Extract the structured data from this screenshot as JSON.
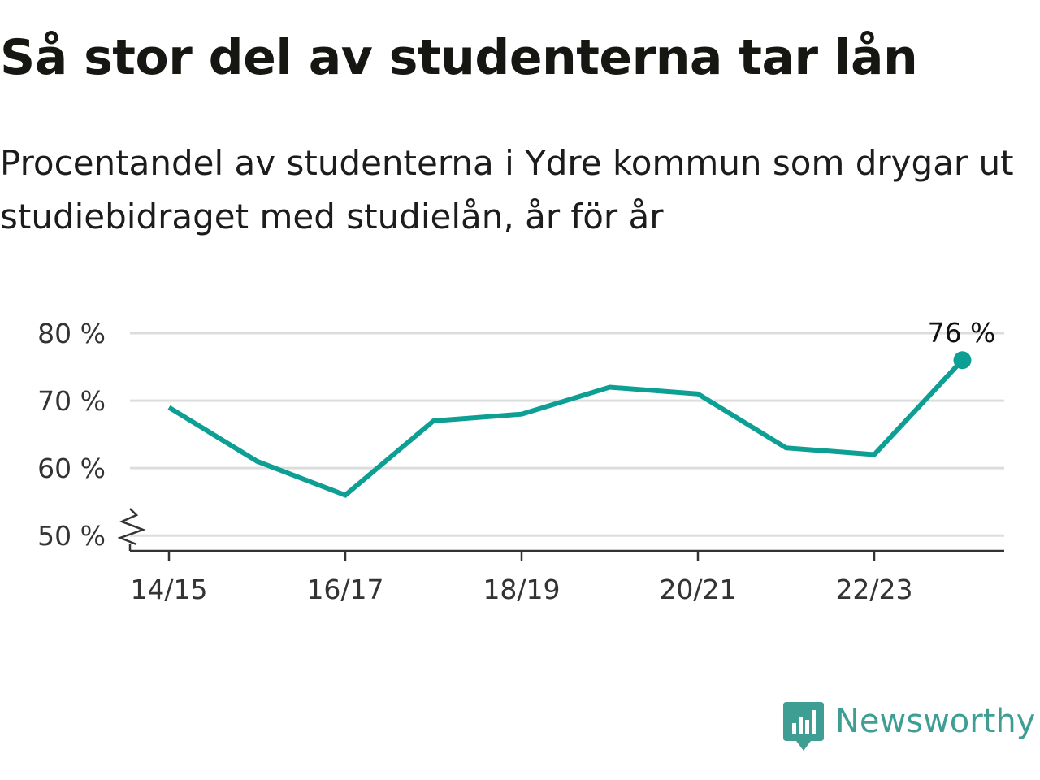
{
  "title": "Så stor del av studenterna tar lån",
  "subtitle": "Procentandel av studenterna i Ydre kommun som drygar ut studiebidraget med studielån, år för år",
  "brand": {
    "name": "Newsworthy",
    "color": "#3f9e93",
    "icon": "newsworthy-logo-icon"
  },
  "chart_data": {
    "type": "line",
    "x": [
      "14/15",
      "15/16",
      "16/17",
      "17/18",
      "18/19",
      "19/20",
      "20/21",
      "21/22",
      "22/23",
      "23/24"
    ],
    "series": [
      {
        "values": [
          69,
          61,
          56,
          67,
          68,
          72,
          71,
          63,
          62,
          76
        ],
        "color": "#0e9f94"
      }
    ],
    "x_tick_labels": [
      "14/15",
      "16/17",
      "18/19",
      "20/21",
      "22/23"
    ],
    "y_ticks": [
      50,
      60,
      70,
      80
    ],
    "y_tick_labels": [
      "50 %",
      "60 %",
      "70 %",
      "80 %"
    ],
    "ylim": [
      47.5,
      80
    ],
    "y_axis_break": true,
    "grid": true,
    "annotations": [
      {
        "x": "23/24",
        "y": 76,
        "text": "76 %"
      }
    ]
  }
}
